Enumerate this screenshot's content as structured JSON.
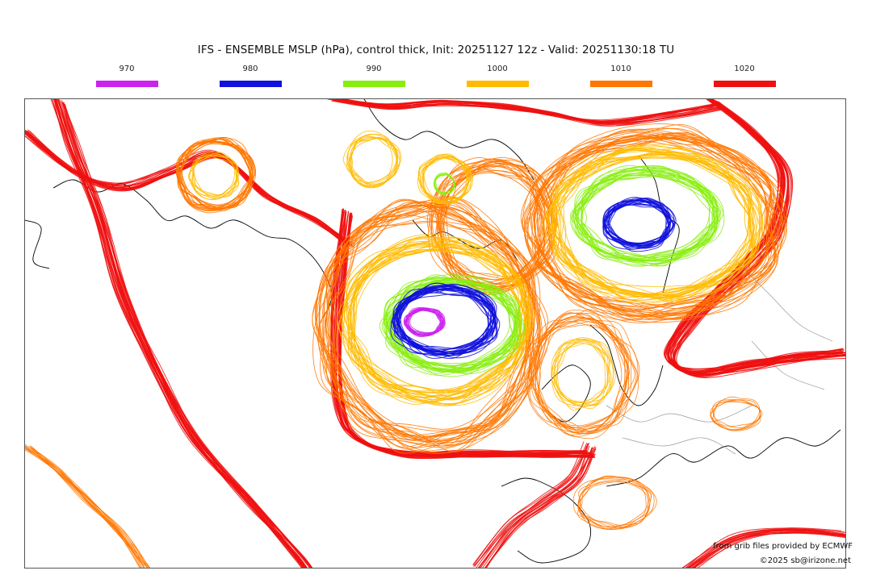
{
  "title": "IFS - ENSEMBLE MSLP (hPa), control thick, Init: 20251127 12z - Valid: 20251130:18 TU",
  "legend": [
    {
      "label": "970",
      "color": "#cc22ee"
    },
    {
      "label": "980",
      "color": "#1111dd"
    },
    {
      "label": "990",
      "color": "#88ee11"
    },
    {
      "label": "1000",
      "color": "#ffbb00"
    },
    {
      "label": "1010",
      "color": "#ff7700"
    },
    {
      "label": "1020",
      "color": "#ee1111"
    }
  ],
  "credits": {
    "source": "from grib files provided by ECMWF",
    "copyright": "©2025 sb@irizone.net"
  },
  "colors": {
    "coastline": "#000000",
    "border": "#999999"
  }
}
